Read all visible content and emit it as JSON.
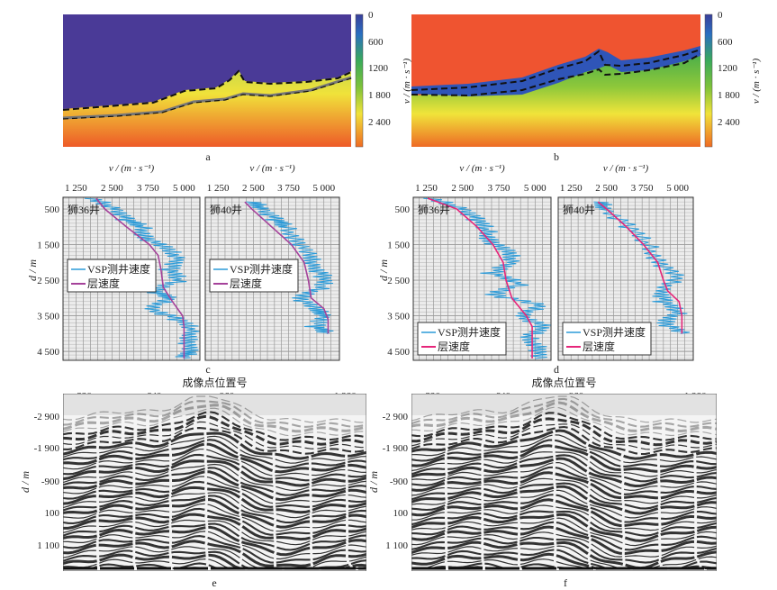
{
  "colors": {
    "sediment_top_a": "#4a3a97",
    "salt_top_b": "#ef5430",
    "vsp": "#2a9ad8",
    "layer_c": "#a5429a",
    "layer_d": "#e6267a"
  },
  "chart_data": [
    {
      "type": "heatmap",
      "panel": "a",
      "caption": "a",
      "colorbar": {
        "label": "v / (m · s⁻¹)",
        "ticks": [
          "0",
          "600",
          "1200",
          "1 800",
          "2 400"
        ]
      }
    },
    {
      "type": "heatmap",
      "panel": "b",
      "caption": "b",
      "colorbar": {
        "label": "v / (m · s⁻¹)",
        "ticks": [
          "0",
          "600",
          "1200",
          "1 800",
          "2 400"
        ]
      }
    },
    {
      "type": "line",
      "panel": "c",
      "caption": "c",
      "xlabel": "v / (m · s⁻¹)",
      "ylabel": "d / m",
      "xticks": [
        "1 250",
        "2 500",
        "3 750",
        "5 000"
      ],
      "xtick_values": [
        1250,
        2500,
        3750,
        5000
      ],
      "yticks": [
        "500",
        "1 500",
        "2 500",
        "3 500",
        "4 500"
      ],
      "ytick_values": [
        500,
        1500,
        2500,
        3500,
        4500
      ],
      "xlim": [
        800,
        5550
      ],
      "ylim": [
        170,
        4750
      ],
      "wells": [
        {
          "name": "狮36井",
          "legend": [
            "VSP测井速度",
            "层速度"
          ],
          "layer": [
            [
              200,
              1950
            ],
            [
              500,
              2250
            ],
            [
              1000,
              3000
            ],
            [
              1500,
              3800
            ],
            [
              1800,
              4100
            ],
            [
              2200,
              4200
            ],
            [
              2700,
              4280
            ],
            [
              3100,
              4600
            ],
            [
              3500,
              4950
            ],
            [
              3800,
              5000
            ],
            [
              4700,
              5000
            ]
          ],
          "vsp": [
            [
              200,
              1700
            ],
            [
              500,
              2700
            ],
            [
              800,
              3000
            ],
            [
              1000,
              3500
            ],
            [
              1300,
              3700
            ],
            [
              1600,
              4300
            ],
            [
              1900,
              4900
            ],
            [
              2200,
              4500
            ],
            [
              2500,
              4800
            ],
            [
              2800,
              4000
            ],
            [
              3000,
              4400
            ],
            [
              3300,
              3900
            ],
            [
              3600,
              4800
            ],
            [
              3900,
              5300
            ],
            [
              4200,
              5200
            ],
            [
              4500,
              5100
            ],
            [
              4700,
              5000
            ]
          ]
        },
        {
          "name": "狮40井",
          "legend": [
            "VSP测井速度",
            "层速度"
          ],
          "layer": [
            [
              300,
              2200
            ],
            [
              500,
              2450
            ],
            [
              1000,
              3150
            ],
            [
              1500,
              3850
            ],
            [
              2000,
              4300
            ],
            [
              2500,
              4450
            ],
            [
              3000,
              4550
            ],
            [
              3300,
              5000
            ],
            [
              3600,
              5150
            ],
            [
              4000,
              5150
            ]
          ],
          "vsp": [
            [
              300,
              2400
            ],
            [
              500,
              2900
            ],
            [
              800,
              3300
            ],
            [
              1000,
              3600
            ],
            [
              1400,
              4100
            ],
            [
              1800,
              4400
            ],
            [
              2100,
              4700
            ],
            [
              2400,
              5000
            ],
            [
              2700,
              4900
            ],
            [
              3000,
              4200
            ],
            [
              3300,
              4600
            ],
            [
              3500,
              5100
            ],
            [
              3800,
              4700
            ],
            [
              4000,
              5100
            ]
          ]
        }
      ]
    },
    {
      "type": "line",
      "panel": "d",
      "caption": "d",
      "xlabel": "v / (m · s⁻¹)",
      "ylabel": "d / m",
      "xticks": [
        "1 250",
        "2 500",
        "3 750",
        "5 000"
      ],
      "xtick_values": [
        1250,
        2500,
        3750,
        5000
      ],
      "yticks": [
        "500",
        "1 500",
        "2 500",
        "3 500",
        "4 500"
      ],
      "ytick_values": [
        500,
        1500,
        2500,
        3500,
        4500
      ],
      "xlim": [
        800,
        5550
      ],
      "ylim": [
        170,
        4750
      ],
      "wells": [
        {
          "name": "狮36井",
          "legend": [
            "VSP测井速度",
            "层速度"
          ],
          "layer": [
            [
              200,
              1300
            ],
            [
              500,
              2300
            ],
            [
              1000,
              3000
            ],
            [
              1500,
              3550
            ],
            [
              2000,
              3900
            ],
            [
              2500,
              4000
            ],
            [
              3000,
              4200
            ],
            [
              3500,
              4700
            ],
            [
              3800,
              4900
            ],
            [
              4700,
              4900
            ]
          ],
          "vsp": [
            [
              200,
              1300
            ],
            [
              500,
              2600
            ],
            [
              800,
              3000
            ],
            [
              1100,
              3300
            ],
            [
              1400,
              3500
            ],
            [
              1700,
              4000
            ],
            [
              2000,
              4300
            ],
            [
              2300,
              3500
            ],
            [
              2600,
              4500
            ],
            [
              2900,
              3600
            ],
            [
              3200,
              5100
            ],
            [
              3500,
              4600
            ],
            [
              3800,
              5300
            ],
            [
              4100,
              4700
            ],
            [
              4400,
              5200
            ],
            [
              4700,
              5000
            ]
          ]
        },
        {
          "name": "狮40井",
          "legend": [
            "VSP测井速度",
            "层速度"
          ],
          "layer": [
            [
              300,
              2200
            ],
            [
              500,
              2500
            ],
            [
              1000,
              3200
            ],
            [
              1500,
              3800
            ],
            [
              2000,
              4300
            ],
            [
              2500,
              4500
            ],
            [
              2800,
              4650
            ],
            [
              3100,
              5050
            ],
            [
              3500,
              5150
            ],
            [
              4000,
              5150
            ]
          ],
          "vsp": [
            [
              300,
              2200
            ],
            [
              500,
              2500
            ],
            [
              1000,
              3300
            ],
            [
              1500,
              3900
            ],
            [
              2000,
              4400
            ],
            [
              2400,
              4900
            ],
            [
              2800,
              4500
            ],
            [
              3100,
              4500
            ],
            [
              3400,
              5000
            ],
            [
              3700,
              4600
            ],
            [
              4000,
              5100
            ]
          ]
        }
      ]
    },
    {
      "type": "image",
      "panel": "e",
      "caption": "e",
      "xlabel": "成像点位置号",
      "ylabel": "d / m",
      "xticks": [
        "320",
        "640",
        "960",
        "1 280"
      ],
      "yticks": [
        "-2 900",
        "-1 900",
        "-900",
        "100",
        "1 100"
      ]
    },
    {
      "type": "image",
      "panel": "f",
      "caption": "f",
      "xlabel": "成像点位置号",
      "ylabel": "d / m",
      "xticks": [
        "320",
        "640",
        "960",
        "1 280"
      ],
      "yticks": [
        "-2 900",
        "-1 900",
        "-900",
        "100",
        "1 100"
      ]
    }
  ]
}
